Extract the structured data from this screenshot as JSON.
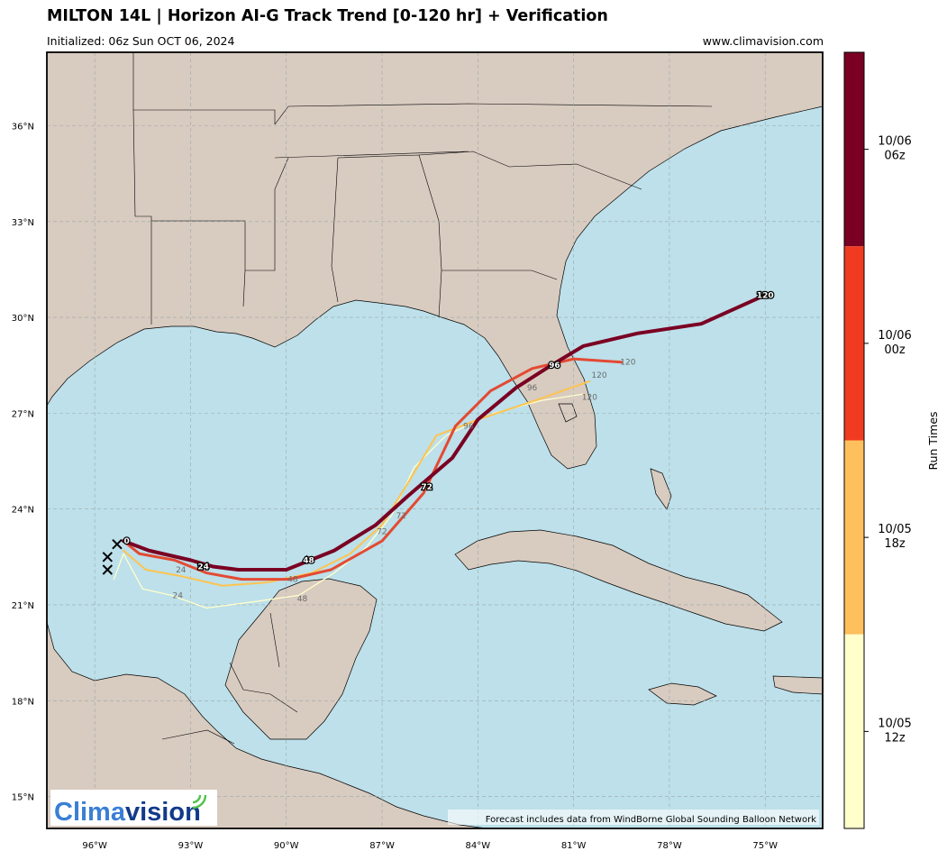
{
  "header": {
    "title": "MILTON 14L | Horizon AI-G Track Trend [0-120 hr] + Verification",
    "initialized": "Initialized: 06z Sun OCT 06, 2024",
    "website": "www.climavision.com"
  },
  "map": {
    "lon_range": [
      -97.5,
      -73.2
    ],
    "lat_range": [
      14.0,
      38.3
    ],
    "lon_ticks": [
      "96°W",
      "93°W",
      "90°W",
      "87°W",
      "84°W",
      "81°W",
      "78°W",
      "75°W"
    ],
    "lat_ticks": [
      "15°N",
      "18°N",
      "21°N",
      "24°N",
      "27°N",
      "30°N",
      "33°N",
      "36°N"
    ],
    "land_color": "#d8cbc0",
    "ocean_color": "#bde0ea",
    "grid": true
  },
  "tracks": [
    {
      "run": "10/05 12z",
      "color": "#ffffcc",
      "points": [
        [
          -95.4,
          21.8
        ],
        [
          -95.1,
          22.6
        ],
        [
          -94.5,
          21.5
        ],
        [
          -93.6,
          21.3
        ],
        [
          -92.5,
          20.9
        ],
        [
          -91.0,
          21.1
        ],
        [
          -89.6,
          21.3
        ],
        [
          -88.5,
          22.0
        ],
        [
          -87.5,
          22.8
        ],
        [
          -86.7,
          23.8
        ],
        [
          -86.0,
          25.3
        ],
        [
          -85.0,
          26.3
        ],
        [
          -83.5,
          27.0
        ],
        [
          -82.0,
          27.4
        ],
        [
          -80.7,
          27.6
        ]
      ],
      "labels": [
        {
          "text": "24",
          "lon": -93.4,
          "lat": 21.3
        },
        {
          "text": "48",
          "lon": -89.5,
          "lat": 21.2
        },
        {
          "text": "96",
          "lon": -84.3,
          "lat": 26.6
        },
        {
          "text": "120",
          "lon": -80.5,
          "lat": 27.5
        }
      ]
    },
    {
      "run": "10/05 18z",
      "color": "#fec44f",
      "points": [
        [
          -95.1,
          22.7
        ],
        [
          -94.4,
          22.1
        ],
        [
          -93.3,
          21.9
        ],
        [
          -92.0,
          21.6
        ],
        [
          -90.6,
          21.7
        ],
        [
          -89.2,
          22.0
        ],
        [
          -88.0,
          22.6
        ],
        [
          -87.0,
          23.5
        ],
        [
          -86.2,
          24.8
        ],
        [
          -85.3,
          26.3
        ],
        [
          -84.0,
          26.8
        ],
        [
          -82.2,
          27.4
        ],
        [
          -80.5,
          28.0
        ]
      ],
      "labels": [
        {
          "text": "48",
          "lon": -89.8,
          "lat": 21.8
        },
        {
          "text": "72",
          "lon": -87.0,
          "lat": 23.3
        },
        {
          "text": "120",
          "lon": -80.2,
          "lat": 28.2
        }
      ]
    },
    {
      "run": "10/06 00z",
      "color": "#e34a33",
      "points": [
        [
          -95.1,
          23.0
        ],
        [
          -94.6,
          22.6
        ],
        [
          -93.5,
          22.4
        ],
        [
          -93.0,
          22.2
        ],
        [
          -92.5,
          22.0
        ],
        [
          -91.4,
          21.8
        ],
        [
          -89.9,
          21.8
        ],
        [
          -88.6,
          22.1
        ],
        [
          -87.0,
          23.0
        ],
        [
          -85.7,
          24.5
        ],
        [
          -84.7,
          26.6
        ],
        [
          -83.6,
          27.7
        ],
        [
          -82.3,
          28.4
        ],
        [
          -81.0,
          28.7
        ],
        [
          -79.5,
          28.6
        ]
      ],
      "labels": [
        {
          "text": "24",
          "lon": -93.3,
          "lat": 22.1
        },
        {
          "text": "72",
          "lon": -86.4,
          "lat": 23.8
        },
        {
          "text": "96",
          "lon": -82.3,
          "lat": 27.8
        },
        {
          "text": "120",
          "lon": -79.3,
          "lat": 28.6
        }
      ]
    },
    {
      "run": "10/06 06z",
      "color": "#7a0023",
      "points": [
        [
          -95.1,
          23.0
        ],
        [
          -94.3,
          22.7
        ],
        [
          -93.0,
          22.4
        ],
        [
          -92.3,
          22.2
        ],
        [
          -91.5,
          22.1
        ],
        [
          -90.0,
          22.1
        ],
        [
          -88.5,
          22.7
        ],
        [
          -87.2,
          23.5
        ],
        [
          -86.2,
          24.4
        ],
        [
          -84.8,
          25.6
        ],
        [
          -84.0,
          26.8
        ],
        [
          -82.8,
          27.8
        ],
        [
          -81.7,
          28.5
        ],
        [
          -80.7,
          29.1
        ],
        [
          -79.0,
          29.5
        ],
        [
          -77.0,
          29.8
        ],
        [
          -75.0,
          30.7
        ]
      ],
      "labels": [
        {
          "text": "0",
          "lon": -95.0,
          "lat": 23.0
        },
        {
          "text": "24",
          "lon": -92.6,
          "lat": 22.2
        },
        {
          "text": "48",
          "lon": -89.3,
          "lat": 22.4
        },
        {
          "text": "72",
          "lon": -85.6,
          "lat": 24.7
        },
        {
          "text": "96",
          "lon": -81.6,
          "lat": 28.5
        },
        {
          "text": "120",
          "lon": -75.0,
          "lat": 30.7
        }
      ]
    }
  ],
  "verification_marks": [
    [
      -95.3,
      22.9
    ],
    [
      -95.6,
      22.5
    ],
    [
      -95.6,
      22.1
    ]
  ],
  "colorbar": {
    "label": "Run Times",
    "bands": [
      {
        "label_lines": [
          "10/06",
          "06z"
        ],
        "color": "#7a0023"
      },
      {
        "label_lines": [
          "10/06",
          "00z"
        ],
        "color": "#f03b20"
      },
      {
        "label_lines": [
          "10/05",
          "18z"
        ],
        "color": "#fec05c"
      },
      {
        "label_lines": [
          "10/05",
          "12z"
        ],
        "color": "#ffffcc"
      }
    ]
  },
  "footer_note": "Forecast includes data from WindBorne Global Sounding Balloon Network",
  "logo": {
    "text_a": "Clima",
    "text_b": "vision"
  }
}
